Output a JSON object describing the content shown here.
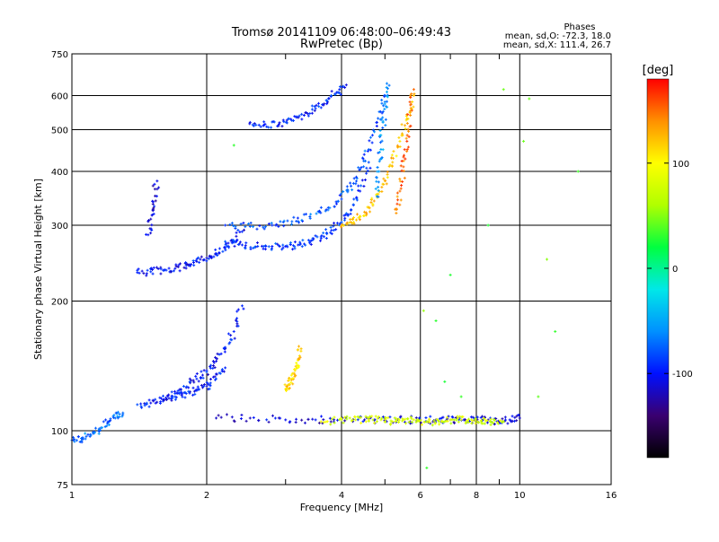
{
  "chart_data": {
    "type": "scatter",
    "title": "Tromsø 20141109 06:48:00–06:49:43",
    "subtitle": "RwPretec (Bp)",
    "xlabel": "Frequency [MHz]",
    "ylabel": "Stationary phase Virtual Height [km]",
    "x_scale": "log",
    "y_scale": "log",
    "xlim": [
      1,
      16
    ],
    "ylim": [
      75,
      750
    ],
    "x_ticks": [
      1,
      2,
      4,
      6,
      8,
      10,
      16
    ],
    "x_minor_ticks": [
      3,
      5,
      7,
      9
    ],
    "y_ticks": [
      75,
      100,
      200,
      300,
      400,
      500,
      600,
      750
    ],
    "grid": true,
    "phases_box": {
      "heading": "Phases",
      "line_o": "mean, sd,O: -72.3, 18.0",
      "line_x": "mean, sd,X: 111.4, 26.7"
    },
    "colorbar": {
      "label": "[deg]",
      "range": [
        -180,
        180
      ],
      "ticks": [
        {
          "value": 100,
          "label": "100"
        },
        {
          "value": 0,
          "label": "0"
        },
        {
          "value": -100,
          "label": "-100"
        }
      ],
      "colors": [
        "#000000",
        "#3a0070",
        "#0010ff",
        "#0090ff",
        "#00e8e8",
        "#00ff40",
        "#b0ff00",
        "#ffff00",
        "#ff9000",
        "#ff0000"
      ]
    },
    "series": [
      {
        "label_role": "E-trace low band",
        "phase": -70,
        "x": [
          1.0,
          1.05,
          1.1,
          1.15,
          1.2,
          1.25,
          1.3
        ],
        "y": [
          95,
          96,
          98,
          101,
          104,
          107,
          110
        ]
      },
      {
        "label_role": "E-trace",
        "phase": -95,
        "x": [
          1.4,
          1.5,
          1.6,
          1.7,
          1.8,
          1.9,
          2.0,
          2.1,
          2.2
        ],
        "y": [
          115,
          116,
          118,
          120,
          122,
          124,
          127,
          132,
          140
        ]
      },
      {
        "label_role": "E-trace upper",
        "phase": -100,
        "x": [
          1.6,
          1.7,
          1.8,
          1.9,
          2.0,
          2.1,
          2.2,
          2.3,
          2.4
        ],
        "y": [
          118,
          122,
          126,
          132,
          138,
          145,
          155,
          170,
          195
        ]
      },
      {
        "label_role": "Es-trace",
        "phase": -110,
        "x": [
          2.1,
          2.5,
          3.0,
          3.5,
          4.0,
          4.5,
          5.0,
          5.5,
          6.0,
          6.5,
          7.0,
          7.5,
          8.0,
          8.5,
          9.0,
          9.5,
          10.0
        ],
        "y": [
          107,
          107,
          106,
          106,
          106,
          106,
          106,
          106,
          106,
          106,
          106,
          106,
          106,
          106,
          105,
          106,
          107
        ]
      },
      {
        "label_role": "Es-trace x",
        "phase": 80,
        "x": [
          3.6,
          4.0,
          4.3,
          4.6,
          4.9,
          5.2,
          5.5,
          5.8,
          6.2,
          6.6,
          7.0,
          7.4,
          7.8,
          8.2,
          8.6,
          9.2
        ],
        "y": [
          105,
          106,
          106,
          106,
          106,
          105,
          106,
          106,
          105,
          105,
          106,
          106,
          106,
          105,
          105,
          105
        ]
      },
      {
        "label_role": "Es-x short",
        "phase": 115,
        "x": [
          3.0,
          3.05,
          3.1,
          3.15,
          3.2,
          3.25
        ],
        "y": [
          125,
          128,
          132,
          138,
          146,
          155
        ]
      },
      {
        "label_role": "F-trace low",
        "phase": -100,
        "x": [
          1.4,
          1.5,
          1.6,
          1.7,
          1.8,
          1.9,
          2.0,
          2.1,
          2.2,
          2.3,
          2.4
        ],
        "y": [
          233,
          234,
          236,
          238,
          242,
          247,
          252,
          258,
          266,
          276,
          290
        ]
      },
      {
        "label_role": "F-trace",
        "phase": -90,
        "x": [
          2.2,
          2.4,
          2.6,
          2.8,
          3.0,
          3.2,
          3.4,
          3.6,
          3.8,
          4.0,
          4.2,
          4.4,
          4.6
        ],
        "y": [
          275,
          270,
          268,
          268,
          268,
          270,
          275,
          282,
          292,
          305,
          325,
          360,
          420
        ]
      },
      {
        "label_role": "F-trace upper",
        "phase": -80,
        "x": [
          2.2,
          2.5,
          2.8,
          3.1,
          3.4,
          3.7,
          4.0,
          4.2,
          4.4,
          4.6,
          4.8,
          5.0
        ],
        "y": [
          300,
          298,
          300,
          306,
          314,
          326,
          345,
          370,
          405,
          450,
          520,
          600
        ]
      },
      {
        "label_role": "F-x trace",
        "phase": 120,
        "x": [
          4.0,
          4.2,
          4.4,
          4.6,
          4.8,
          5.0,
          5.2,
          5.4,
          5.6,
          5.8
        ],
        "y": [
          300,
          305,
          315,
          330,
          350,
          380,
          420,
          470,
          530,
          600
        ]
      },
      {
        "label_role": "F-x steep",
        "phase": 150,
        "x": [
          5.3,
          5.4,
          5.5,
          5.6,
          5.7,
          5.8
        ],
        "y": [
          320,
          360,
          410,
          470,
          540,
          620
        ]
      },
      {
        "label_role": "F upper arc",
        "phase": -95,
        "x": [
          2.5,
          2.7,
          2.9,
          3.1,
          3.3,
          3.5,
          3.7,
          3.9,
          4.1
        ],
        "y": [
          520,
          515,
          515,
          525,
          540,
          560,
          585,
          610,
          635
        ]
      },
      {
        "label_role": "spread 1.5 MHz",
        "phase": -110,
        "x": [
          1.48,
          1.5,
          1.52,
          1.55
        ],
        "y": [
          285,
          310,
          340,
          380
        ]
      },
      {
        "label_role": "F vertical",
        "phase": -60,
        "x": [
          4.8,
          4.85,
          4.9,
          4.95,
          5.0,
          5.05
        ],
        "y": [
          350,
          400,
          450,
          520,
          580,
          640
        ]
      },
      {
        "label_role": "scatter",
        "phase": 40,
        "x": [
          6.2,
          6.5,
          7.0,
          8.5,
          9.2,
          10.5,
          11.0,
          12.0,
          13.5,
          6.8,
          7.4,
          10.2,
          11.5,
          2.3,
          6.1
        ],
        "y": [
          82,
          180,
          230,
          300,
          620,
          590,
          120,
          170,
          400,
          130,
          120,
          470,
          250,
          460,
          190
        ]
      }
    ]
  }
}
